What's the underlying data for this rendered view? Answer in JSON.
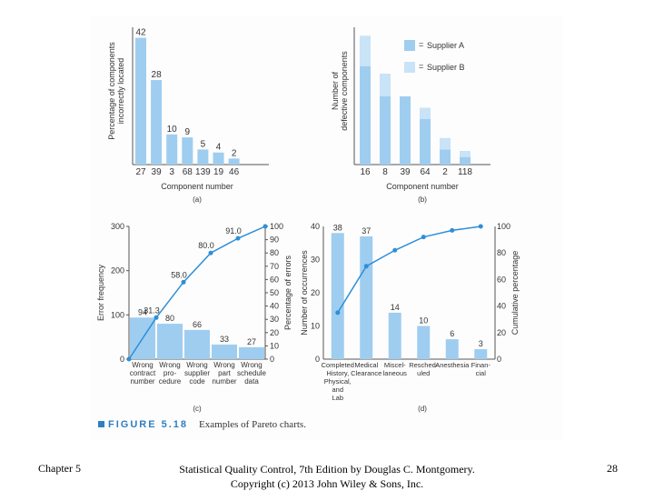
{
  "chart_data": [
    {
      "type": "bar",
      "panel": "(a)",
      "categories": [
        "27",
        "39",
        "3",
        "68",
        "139",
        "19",
        "46"
      ],
      "values": [
        42,
        28,
        10,
        9,
        5,
        4,
        2
      ],
      "data_labels": [
        "42",
        "28",
        "10",
        "9",
        "5",
        "4",
        "2"
      ],
      "xlabel": "Component number",
      "ylabel": "Percentage of components incorrectly located",
      "ylim": [
        0,
        50
      ],
      "color": "#9fcdf0"
    },
    {
      "type": "bar",
      "panel": "(b)",
      "stacked": true,
      "categories": [
        "16",
        "8",
        "39",
        "64",
        "2",
        "118"
      ],
      "series": [
        {
          "name": "Supplier A",
          "values": [
            13,
            9,
            9,
            6,
            2,
            1
          ],
          "color": "#9fcdf0"
        },
        {
          "name": "Supplier B",
          "values": [
            4,
            3,
            0,
            1.5,
            1.5,
            0.8
          ],
          "color": "#c9e3f7"
        }
      ],
      "xlabel": "Component number",
      "ylabel": "Number of defective components",
      "ylim": [
        0,
        18
      ],
      "legend": "top-right"
    },
    {
      "type": "bar",
      "panel": "(c)",
      "categories": [
        "Wrong contract number",
        "Wrong pro-cedure",
        "Wrong supplier code",
        "Wrong part number",
        "Wrong schedule data"
      ],
      "values": [
        94,
        80,
        66,
        33,
        27
      ],
      "data_labels": [
        "94",
        "80",
        "66",
        "33",
        "27"
      ],
      "ylabel": "Error frequency",
      "ylim": [
        0,
        300
      ],
      "yticks": [
        "0",
        "100",
        "200",
        "300"
      ],
      "cumulative_line": {
        "x": [
          0,
          1,
          2,
          3,
          4,
          5
        ],
        "values": [
          0,
          31.3,
          58.0,
          80.0,
          91.0,
          100
        ],
        "labels": [
          "31.3",
          "58.0",
          "80.0",
          "91.0"
        ],
        "ylabel": "Percentage of errors",
        "yticks": [
          "0",
          "10",
          "20",
          "30",
          "40",
          "50",
          "60",
          "70",
          "80",
          "90",
          "100"
        ]
      },
      "color": "#9fcdf0"
    },
    {
      "type": "bar",
      "panel": "(d)",
      "categories": [
        "Completed History, Physical, and Lab",
        "Medical Clearance",
        "Miscel-laneous",
        "Resched-uled",
        "Anesthesia",
        "Finan-cial"
      ],
      "values": [
        38,
        37,
        14,
        10,
        6,
        3
      ],
      "data_labels": [
        "38",
        "37",
        "14",
        "10",
        "6",
        "3"
      ],
      "ylabel": "Number of occurrences",
      "ylim": [
        0,
        40
      ],
      "yticks": [
        "0",
        "10",
        "20",
        "30",
        "40"
      ],
      "cumulative_line": {
        "values": [
          35,
          70,
          82,
          92,
          97,
          100
        ],
        "ylabel": "Cumulative percentage",
        "yticks": [
          "0",
          "20",
          "40",
          "60",
          "80",
          "100"
        ]
      },
      "color": "#9fcdf0"
    }
  ],
  "figure": {
    "label": "FIGURE 5.18",
    "caption": "Examples of Pareto charts."
  },
  "footer": {
    "left": "Chapter 5",
    "center_line1": "Statistical Quality Control, 7th Edition by Douglas C. Montgomery.",
    "center_line2": "Copyright (c) 2013 John Wiley & Sons, Inc.",
    "page_number": "28"
  }
}
